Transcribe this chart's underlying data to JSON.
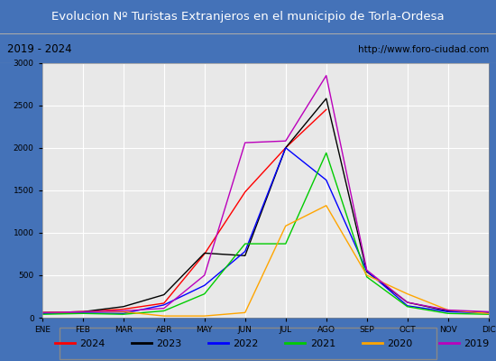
{
  "title": "Evolucion Nº Turistas Extranjeros en el municipio de Torla-Ordesa",
  "subtitle_left": "2019 - 2024",
  "subtitle_right": "http://www.foro-ciudad.com",
  "months": [
    "ENE",
    "FEB",
    "MAR",
    "ABR",
    "MAY",
    "JUN",
    "JUL",
    "AGO",
    "SEP",
    "OCT",
    "NOV",
    "DIC"
  ],
  "ylim": [
    0,
    3000
  ],
  "yticks": [
    0,
    500,
    1000,
    1500,
    2000,
    2500,
    3000
  ],
  "series": {
    "2024": {
      "color": "#ff0000",
      "data": [
        60,
        70,
        100,
        170,
        750,
        1480,
        2000,
        2450,
        null,
        null,
        null,
        null
      ]
    },
    "2023": {
      "color": "#000000",
      "data": [
        60,
        70,
        130,
        270,
        760,
        730,
        2000,
        2580,
        540,
        180,
        80,
        60
      ]
    },
    "2022": {
      "color": "#0000ff",
      "data": [
        50,
        55,
        50,
        150,
        380,
        780,
        2000,
        1620,
        550,
        140,
        70,
        55
      ]
    },
    "2021": {
      "color": "#00cc00",
      "data": [
        40,
        50,
        40,
        80,
        280,
        870,
        870,
        1940,
        480,
        130,
        50,
        40
      ]
    },
    "2020": {
      "color": "#ffa500",
      "data": [
        60,
        70,
        70,
        20,
        20,
        60,
        1080,
        1320,
        500,
        280,
        90,
        50
      ]
    },
    "2019": {
      "color": "#bb00bb",
      "data": [
        60,
        70,
        80,
        110,
        500,
        2060,
        2080,
        2850,
        560,
        180,
        90,
        70
      ]
    }
  },
  "legend_order": [
    "2024",
    "2023",
    "2022",
    "2021",
    "2020",
    "2019"
  ],
  "title_bg_color": "#4472b8",
  "title_text_color": "#ffffff",
  "subtitle_bg_color": "#e8e8e8",
  "subtitle_border_color": "#888888",
  "plot_bg_color": "#e8e8e8",
  "grid_color": "#ffffff",
  "outer_bg_color": "#4472b8"
}
